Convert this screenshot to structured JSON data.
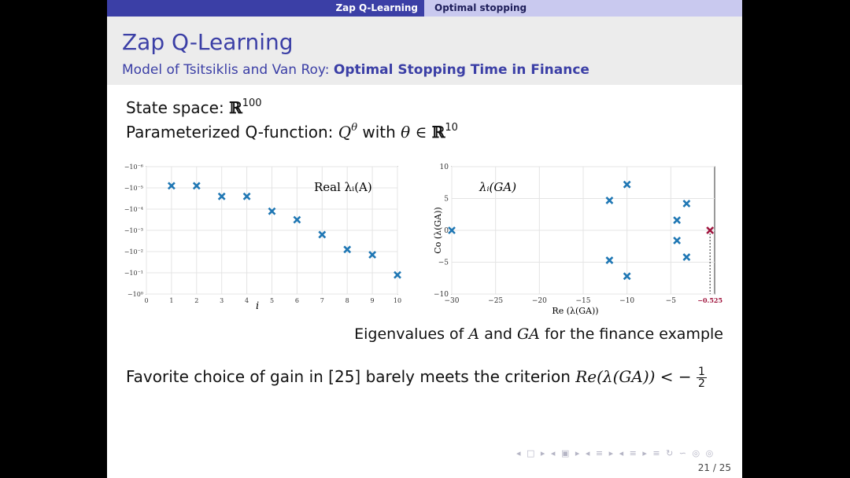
{
  "navbar": {
    "section": "Zap Q-Learning",
    "subsection": "Optimal stopping"
  },
  "header": {
    "title": "Zap Q-Learning",
    "subtitle_prefix": "Model of Tsitsiklis and Van Roy:",
    "subtitle_emph": "Optimal Stopping Time in Finance"
  },
  "body": {
    "state_label": "State space:",
    "state_set": "ℝ",
    "state_dim": "100",
    "param_label": "Parameterized Q-function:",
    "param_q": "Q",
    "param_q_sup": "θ",
    "param_with": "with",
    "param_theta": "θ ∈",
    "param_set": "ℝ",
    "param_dim": "10"
  },
  "caption": {
    "pre": "Eigenvalues of",
    "a": "A",
    "and": "and",
    "ga": "GA",
    "post": "for the finance example"
  },
  "favorite": {
    "text": "Favorite choice of gain in [25] barely meets the criterion",
    "expr": "Re(λ(GA)) < −",
    "num": "1",
    "den": "2"
  },
  "footer": {
    "nav_symbols": "◂ □ ▸ ◂ ▣ ▸ ◂ ≡ ▸ ◂ ≡ ▸ ≡ ↻ ∽ ◎ ◎",
    "page": "21 / 25"
  },
  "chart_data": [
    {
      "type": "scatter",
      "legend": "Real λᵢ(A)",
      "xlabel": "i",
      "ylabel": "",
      "xlim": [
        0,
        10
      ],
      "xticks": [
        "0",
        "1",
        "2",
        "3",
        "4",
        "5",
        "6",
        "7",
        "8",
        "9",
        "10"
      ],
      "yscale": "log (negative values)",
      "yticks": [
        "−10⁻⁶",
        "−10⁻⁵",
        "−10⁻⁴",
        "−10⁻³",
        "−10⁻²",
        "−10⁻¹",
        "−10⁰"
      ],
      "ylim_exp": [
        -6,
        0
      ],
      "x": [
        1,
        2,
        3,
        4,
        5,
        6,
        7,
        8,
        9,
        10
      ],
      "y_exp": [
        -5.1,
        -5.1,
        -4.6,
        -4.6,
        -3.9,
        -3.5,
        -2.8,
        -2.1,
        -1.85,
        -0.9
      ],
      "marker_color": "#1f77b4",
      "grid": true
    },
    {
      "type": "scatter",
      "legend": "λᵢ(GA)",
      "xlabel": "Re (λ(GA))",
      "ylabel": "Co (λ(GA))",
      "xlim": [
        -30,
        0
      ],
      "ylim": [
        -10,
        10
      ],
      "xticks": [
        "−30",
        "−25",
        "−20",
        "−15",
        "−10",
        "−5"
      ],
      "yticks": [
        "−10",
        "−5",
        "0",
        "5",
        "10"
      ],
      "points": [
        {
          "x": -30,
          "y": 0
        },
        {
          "x": -12,
          "y": 4.7
        },
        {
          "x": -12,
          "y": -4.7
        },
        {
          "x": -10,
          "y": 7.2
        },
        {
          "x": -10,
          "y": -7.2
        },
        {
          "x": -4.3,
          "y": 1.6
        },
        {
          "x": -4.3,
          "y": -1.6
        },
        {
          "x": -3.2,
          "y": 4.2
        },
        {
          "x": -3.2,
          "y": -4.2
        }
      ],
      "highlight": {
        "x": -0.525,
        "y": 0,
        "label": "−0.525"
      },
      "marker_color": "#1f77b4",
      "highlight_color": "#a0153e",
      "grid": true
    }
  ]
}
